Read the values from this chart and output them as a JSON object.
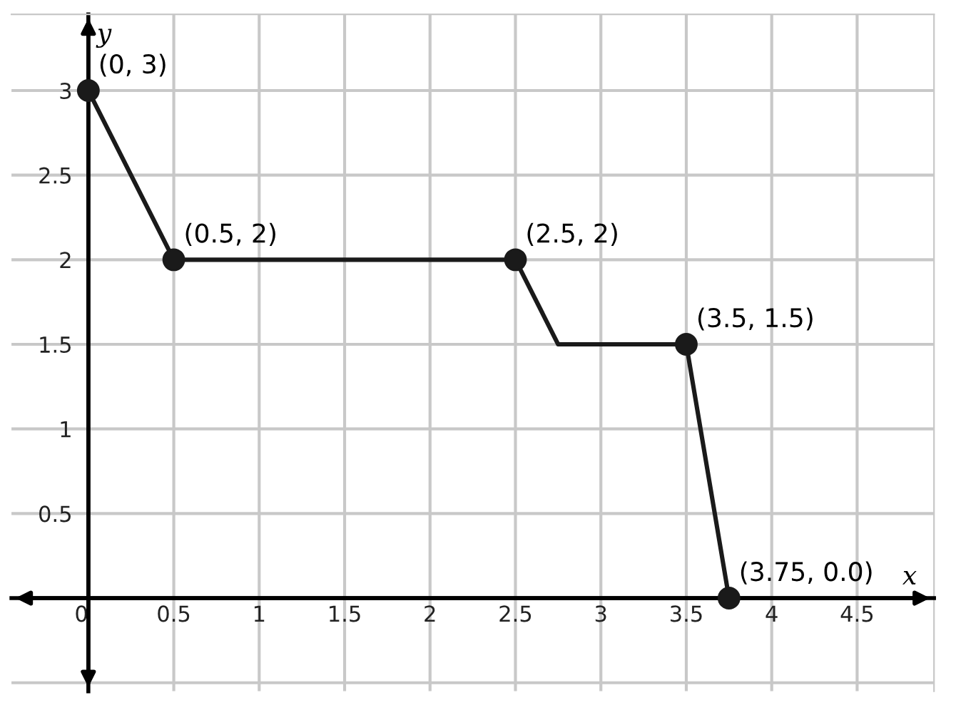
{
  "chart_data": {
    "type": "line",
    "xlabel": "x",
    "ylabel": "y",
    "series": [
      {
        "color": "#1a1a1a",
        "x": [
          0,
          0.5,
          2.5,
          2.75,
          3.5,
          3.75
        ],
        "values": [
          3,
          2,
          2,
          1.5,
          1.5,
          0
        ],
        "marker": "none"
      },
      {
        "type": "scatter",
        "color": "#1a1a1a",
        "x": [
          0,
          0.5,
          2.5,
          3.5,
          3.75
        ],
        "values": [
          3,
          2,
          2,
          1.5,
          0
        ],
        "marker": "circle"
      }
    ],
    "annotations": [
      {
        "text": "(0, 3)",
        "x": 0,
        "y": 3
      },
      {
        "text": "(0.5, 2)",
        "x": 0.5,
        "y": 2
      },
      {
        "text": "(2.5, 2)",
        "x": 2.5,
        "y": 2
      },
      {
        "text": "(3.5, 1.5)",
        "x": 3.5,
        "y": 1.5
      },
      {
        "text": "(3.75, 0.0)",
        "x": 3.75,
        "y": 0
      }
    ],
    "xlim": [
      -0.45,
      4.95
    ],
    "ylim": [
      -0.55,
      3.45
    ],
    "xticks": [
      0,
      0.5,
      1,
      1.5,
      2,
      2.5,
      3,
      3.5,
      4,
      4.5
    ],
    "yticks": [
      0.5,
      1,
      1.5,
      2,
      2.5,
      3
    ],
    "grid": true
  }
}
